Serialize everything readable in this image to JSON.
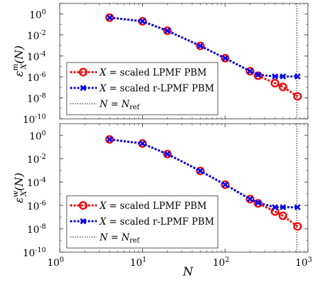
{
  "chart_data": [
    {
      "type": "line",
      "ylabel_main": "ε",
      "ylabel_sub": "X",
      "ylabel_sup": "m",
      "ylabel_rest": "(N)",
      "xlabel": "",
      "x_scale": "log",
      "y_scale": "log",
      "xlim": [
        1,
        1000
      ],
      "ylim": [
        1e-10,
        10
      ],
      "x_ticks": [
        1,
        10,
        100,
        1000
      ],
      "y_ticks": [
        1,
        0.01,
        0.0001,
        1e-06,
        1e-08,
        1e-10
      ],
      "x_tick_labels": [
        {
          "base": "10",
          "exp": "0"
        },
        {
          "base": "10",
          "exp": "1"
        },
        {
          "base": "10",
          "exp": "2"
        },
        {
          "base": "10",
          "exp": "3"
        }
      ],
      "y_tick_labels": [
        {
          "base": "10",
          "exp": "0"
        },
        {
          "base": "10",
          "exp": "-2"
        },
        {
          "base": "10",
          "exp": "-4"
        },
        {
          "base": "10",
          "exp": "-6"
        },
        {
          "base": "10",
          "exp": "-8"
        },
        {
          "base": "10",
          "exp": "-10"
        }
      ],
      "show_x_tick_labels": false,
      "legend_position": "bottom-left",
      "reference_line": {
        "x": 1000,
        "style": "dotted",
        "color": "#000000"
      },
      "series": [
        {
          "name": "X = scaled LPMF PBM",
          "name_parts": [
            "X",
            " = scaled LPMF PBM"
          ],
          "color": "#ff0000",
          "marker": "circle",
          "x": [
            4,
            10,
            20,
            50,
            100,
            200,
            250,
            400,
            500,
            750
          ],
          "y": [
            0.45,
            0.2,
            0.025,
            0.0009,
            6e-05,
            3.5e-06,
            1.3e-06,
            2.5e-07,
            1.1e-07,
            1.4e-08
          ]
        },
        {
          "name": "X = scaled r-LPMF PBM",
          "name_parts": [
            "X",
            " = scaled r-LPMF PBM"
          ],
          "color": "#0000ff",
          "marker": "x",
          "x": [
            4,
            10,
            20,
            50,
            100,
            200,
            250,
            400,
            500,
            750
          ],
          "y": [
            0.45,
            0.2,
            0.025,
            0.0009,
            6e-05,
            3.5e-06,
            1.6e-06,
            1.1e-06,
            1.1e-06,
            1.1e-06
          ]
        },
        {
          "name": "N = Nref",
          "name_parts": [
            "N",
            " = ",
            "N",
            "ref"
          ],
          "color": "#000000",
          "marker": "none",
          "line_only": true
        }
      ]
    },
    {
      "type": "line",
      "ylabel_main": "ε",
      "ylabel_sub": "X",
      "ylabel_sup": "w",
      "ylabel_rest": "(N)",
      "xlabel": "N",
      "x_scale": "log",
      "y_scale": "log",
      "xlim": [
        1,
        1000
      ],
      "ylim": [
        1e-10,
        10
      ],
      "x_ticks": [
        1,
        10,
        100,
        1000
      ],
      "y_ticks": [
        1,
        0.01,
        0.0001,
        1e-06,
        1e-08,
        1e-10
      ],
      "x_tick_labels": [
        {
          "base": "10",
          "exp": "0"
        },
        {
          "base": "10",
          "exp": "1"
        },
        {
          "base": "10",
          "exp": "2"
        },
        {
          "base": "10",
          "exp": "3"
        }
      ],
      "y_tick_labels": [
        {
          "base": "10",
          "exp": "0"
        },
        {
          "base": "10",
          "exp": "-2"
        },
        {
          "base": "10",
          "exp": "-4"
        },
        {
          "base": "10",
          "exp": "-6"
        },
        {
          "base": "10",
          "exp": "-8"
        },
        {
          "base": "10",
          "exp": "-10"
        }
      ],
      "show_x_tick_labels": true,
      "legend_position": "bottom-left",
      "reference_line": {
        "x": 1000,
        "style": "dotted",
        "color": "#000000"
      },
      "series": [
        {
          "name": "X = scaled LPMF PBM",
          "name_parts": [
            "X",
            " = scaled LPMF PBM"
          ],
          "color": "#ff0000",
          "marker": "circle",
          "x": [
            4,
            10,
            20,
            50,
            100,
            200,
            250,
            400,
            500,
            750
          ],
          "y": [
            0.45,
            0.2,
            0.025,
            0.0009,
            6e-05,
            3.5e-06,
            1.5e-06,
            3e-07,
            1.3e-07,
            1.6e-08
          ]
        },
        {
          "name": "X = scaled r-LPMF PBM",
          "name_parts": [
            "X",
            " = scaled r-LPMF PBM"
          ],
          "color": "#0000ff",
          "marker": "x",
          "x": [
            4,
            10,
            20,
            50,
            100,
            200,
            250,
            400,
            500,
            750
          ],
          "y": [
            0.45,
            0.2,
            0.025,
            0.0009,
            6e-05,
            3.5e-06,
            1.7e-06,
            7e-07,
            7e-07,
            7e-07
          ]
        },
        {
          "name": "N = Nref",
          "name_parts": [
            "N",
            " = ",
            "N",
            "ref"
          ],
          "color": "#000000",
          "marker": "none",
          "line_only": true
        }
      ]
    }
  ]
}
